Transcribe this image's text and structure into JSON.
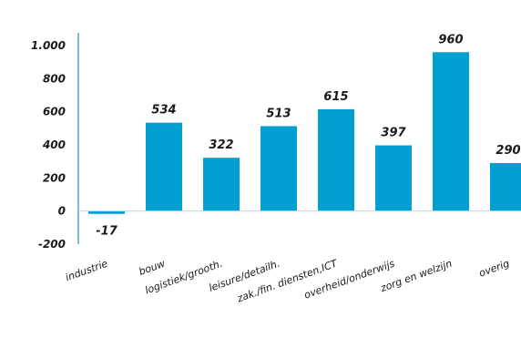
{
  "chart_data": {
    "type": "bar",
    "title": "",
    "xlabel": "",
    "ylabel": "",
    "categories": [
      "industrie",
      "bouw",
      "logistiek/grooth.",
      "leisure/detailh.",
      "zak./fin. diensten,ICT",
      "overheid/onderwijs",
      "zorg en welzijn",
      "overig"
    ],
    "values": [
      -17,
      534,
      322,
      513,
      615,
      397,
      960,
      290
    ],
    "value_labels": [
      "-17",
      "534",
      "322",
      "513",
      "615",
      "397",
      "960",
      "290"
    ],
    "ylim": [
      -200,
      1000
    ],
    "yticks": [
      -200,
      0,
      200,
      400,
      600,
      800,
      1000
    ],
    "ytick_labels": [
      "-200",
      "0",
      "200",
      "400",
      "600",
      "800",
      "1.000"
    ],
    "grid": false,
    "legend": "none",
    "bar_color": "#00a0d2",
    "axis_color": "#5b9bd5"
  }
}
